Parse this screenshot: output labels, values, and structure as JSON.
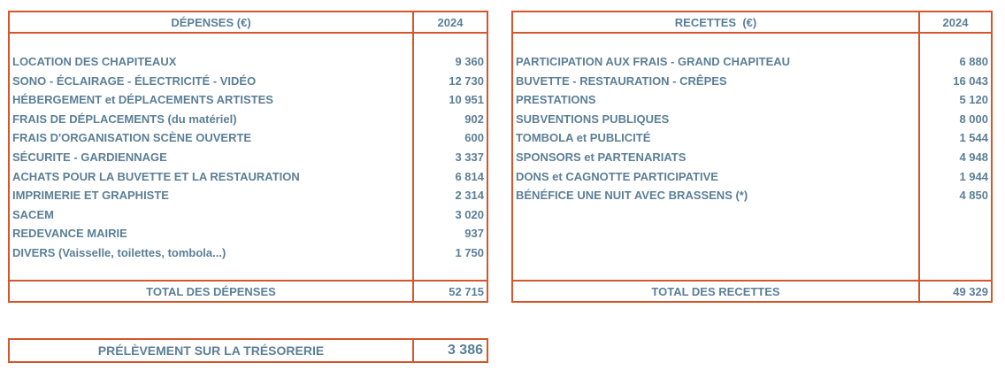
{
  "expenses": {
    "header_label": "DÉPENSES (€)",
    "header_year": "2024",
    "rows": [
      {
        "label": "LOCATION DES CHAPITEAUX",
        "value": "9 360"
      },
      {
        "label": "SONO - ÉCLAIRAGE - ÉLECTRICITÉ - VIDÉO",
        "value": "12 730"
      },
      {
        "label": "HÉBERGEMENT et DÉPLACEMENTS ARTISTES",
        "value": "10 951"
      },
      {
        "label": "FRAIS DE DÉPLACEMENTS (du matériel)",
        "value": "902"
      },
      {
        "label": "FRAIS D'ORGANISATION SCÈNE OUVERTE",
        "value": "600"
      },
      {
        "label": "SÉCURITE - GARDIENNAGE",
        "value": "3 337"
      },
      {
        "label": "ACHATS POUR LA BUVETTE ET LA RESTAURATION",
        "value": "6 814"
      },
      {
        "label": "IMPRIMERIE ET GRAPHISTE",
        "value": "2 314"
      },
      {
        "label": "SACEM",
        "value": "3 020"
      },
      {
        "label": "REDEVANCE MAIRIE",
        "value": "937"
      },
      {
        "label": "DIVERS (Vaisselle,  toilettes, tombola...)",
        "value": "1 750"
      }
    ],
    "total_label": "TOTAL DES DÉPENSES",
    "total_value": "52 715"
  },
  "revenues": {
    "header_label": "RECETTES  (€)",
    "header_year": "2024",
    "rows": [
      {
        "label": "PARTICIPATION AUX FRAIS - GRAND CHAPITEAU",
        "value": "6 880"
      },
      {
        "label": "BUVETTE - RESTAURATION - CRÊPES",
        "value": "16 043"
      },
      {
        "label": "PRESTATIONS",
        "value": "5 120"
      },
      {
        "label": "SUBVENTIONS PUBLIQUES",
        "value": "8 000"
      },
      {
        "label": "TOMBOLA et PUBLICITÉ",
        "value": "1 544"
      },
      {
        "label": "SPONSORS et PARTENARIATS",
        "value": "4 948"
      },
      {
        "label": "DONS et CAGNOTTE PARTICIPATIVE",
        "value": "1 944"
      },
      {
        "label": "BÉNÉFICE UNE NUIT AVEC BRASSENS (*)",
        "value": "4 850"
      }
    ],
    "total_label": "TOTAL DES RECETTES",
    "total_value": "49 329"
  },
  "summary": {
    "label": "PRÉLÈVEMENT SUR LA TRÉSORERIE",
    "value": "3 386"
  }
}
